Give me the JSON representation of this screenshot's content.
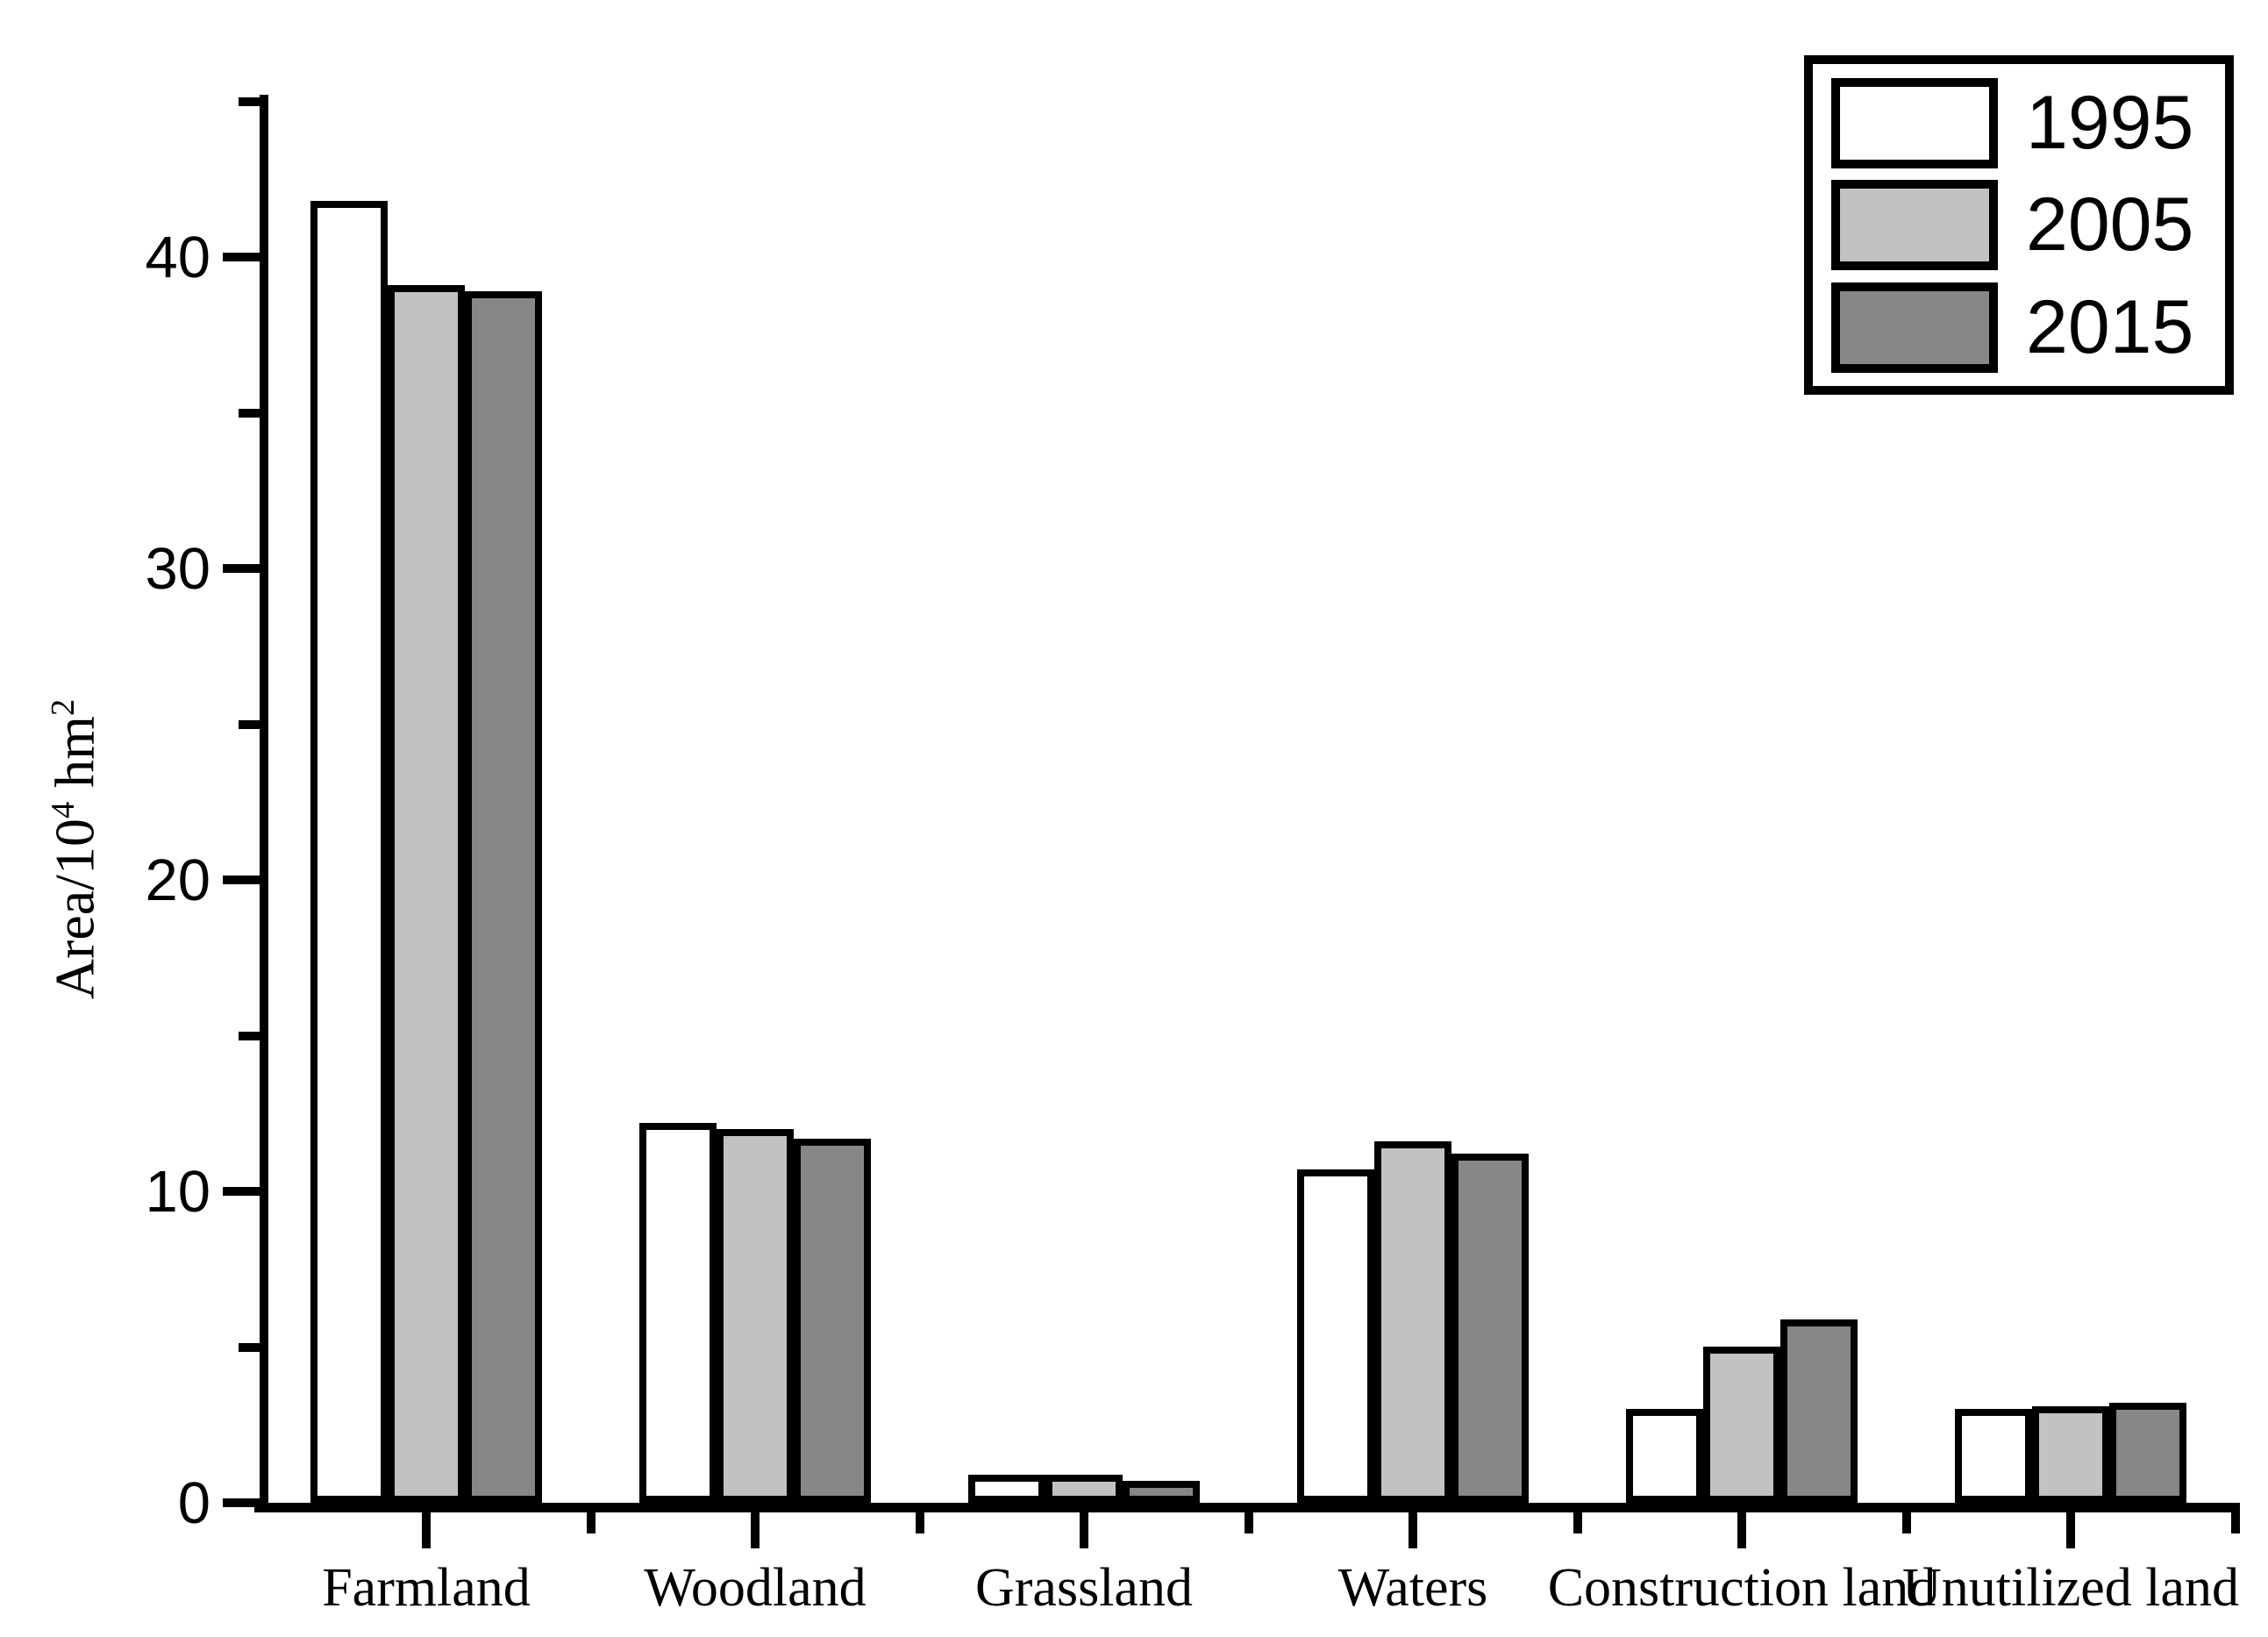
{
  "chart_data": {
    "type": "bar",
    "title": "",
    "ylabel": "Area/10^4 hm^2",
    "ylabel_parts": {
      "prefix": "Area/10",
      "sup1": "4",
      "mid": " hm",
      "sup2": "2"
    },
    "categories": [
      "Farmland",
      "Woodland",
      "Grassland",
      "Waters",
      "Construction land",
      "Unutilized land"
    ],
    "series": [
      {
        "name": "1995",
        "color": "#ffffff",
        "values": [
          41.8,
          12.2,
          0.9,
          10.7,
          3.0,
          3.0
        ]
      },
      {
        "name": "2005",
        "color": "#c2c2c2",
        "values": [
          39.1,
          12.0,
          0.9,
          11.6,
          5.0,
          3.1
        ]
      },
      {
        "name": "2015",
        "color": "#878787",
        "values": [
          38.9,
          11.7,
          0.7,
          11.2,
          5.9,
          3.2
        ]
      }
    ],
    "ylim": [
      0,
      45.2
    ],
    "yticks_major": [
      0,
      10,
      20,
      30,
      40
    ],
    "yticks_minor": [
      5,
      15,
      25,
      35,
      45
    ],
    "grid": false,
    "legend_position": "top-right",
    "bar_outline_color": "#000000",
    "axis_color": "#000000"
  }
}
